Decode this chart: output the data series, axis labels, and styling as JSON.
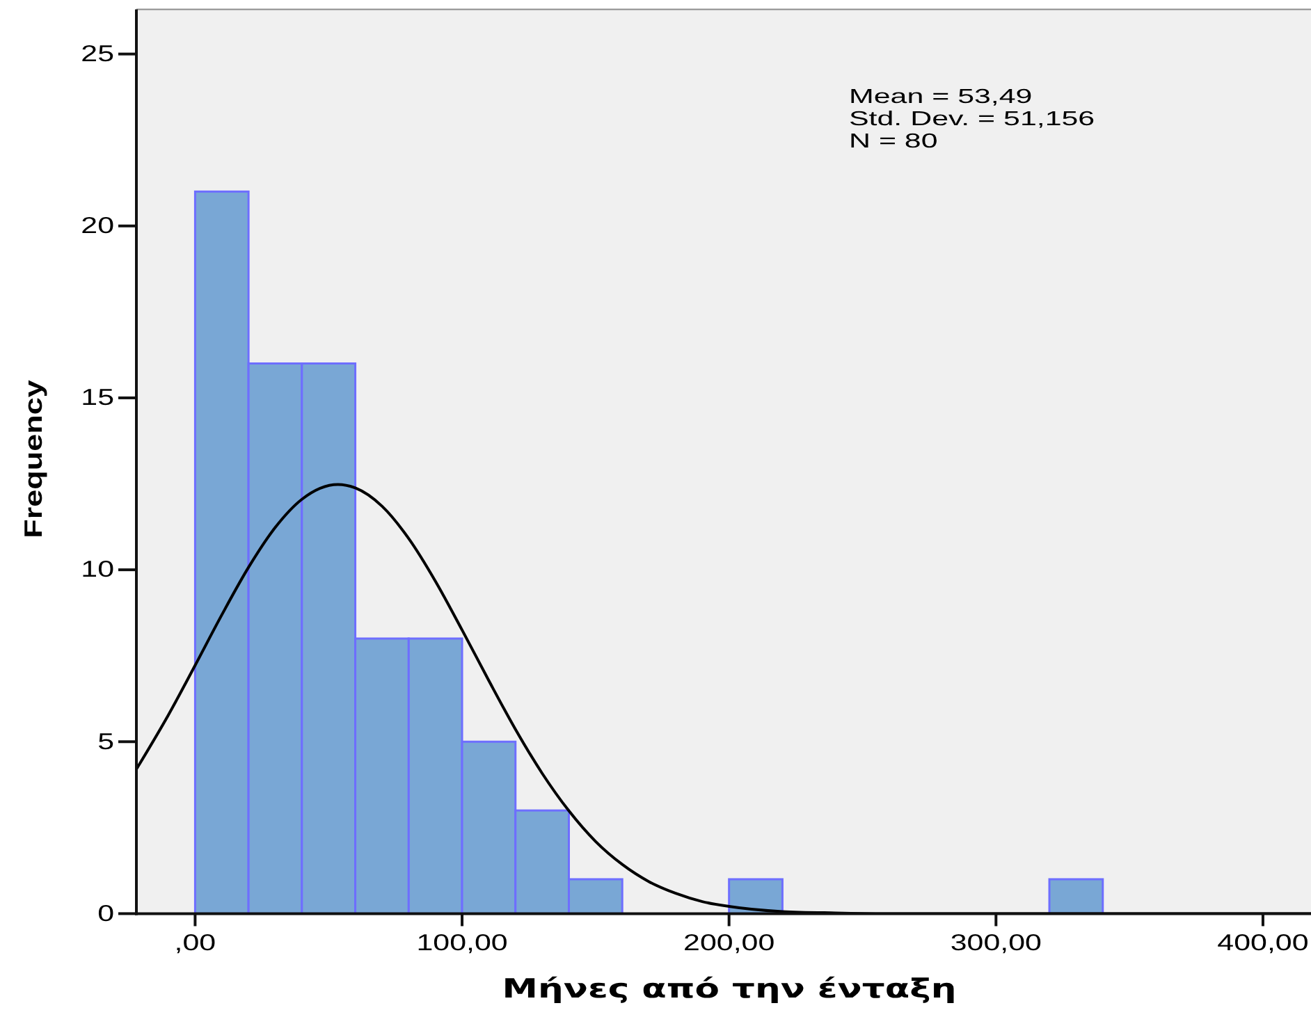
{
  "chart_data": {
    "type": "histogram",
    "xlabel": "Μήνες από την ένταξη",
    "ylabel": "Frequency",
    "annotations": [
      "Mean = 53,49",
      "Std. Dev. = 51,156",
      "N = 80"
    ],
    "bins": [
      0,
      20,
      40,
      60,
      80,
      100,
      120,
      140,
      160,
      180,
      200,
      220,
      240,
      260,
      280,
      300,
      320,
      340
    ],
    "xlim": [
      -22,
      418
    ],
    "ylim": [
      0,
      26.3
    ],
    "xticks": [
      {
        "value": 0,
        "label": ",00"
      },
      {
        "value": 100,
        "label": "100,00"
      },
      {
        "value": 200,
        "label": "200,00"
      },
      {
        "value": 300,
        "label": "300,00"
      },
      {
        "value": 400,
        "label": "400,00"
      }
    ],
    "yticks": [
      0,
      5,
      10,
      15,
      20,
      25
    ],
    "series": [
      {
        "color": "#79a7d5",
        "values": [
          21,
          16,
          16,
          8,
          8,
          5,
          3,
          1,
          0,
          0,
          1,
          0,
          0,
          0,
          0,
          0,
          1
        ]
      },
      {
        "type": "line",
        "color": "#000000",
        "x": [
          -22,
          -10,
          0,
          10,
          20,
          30,
          40,
          53.49,
          60,
          70,
          80,
          90,
          100,
          110,
          120,
          130,
          140,
          150,
          160,
          170,
          180,
          190,
          200,
          220,
          240,
          260,
          300,
          350,
          418
        ],
        "values": [
          4.2,
          5.78,
          7.22,
          8.69,
          10.07,
          11.23,
          12.05,
          12.48,
          12.38,
          11.85,
          10.91,
          9.67,
          8.25,
          6.78,
          5.36,
          4.08,
          2.99,
          2.1,
          1.43,
          0.93,
          0.59,
          0.35,
          0.21,
          0.06,
          0.02,
          0,
          0,
          0,
          0
        ]
      }
    ]
  }
}
